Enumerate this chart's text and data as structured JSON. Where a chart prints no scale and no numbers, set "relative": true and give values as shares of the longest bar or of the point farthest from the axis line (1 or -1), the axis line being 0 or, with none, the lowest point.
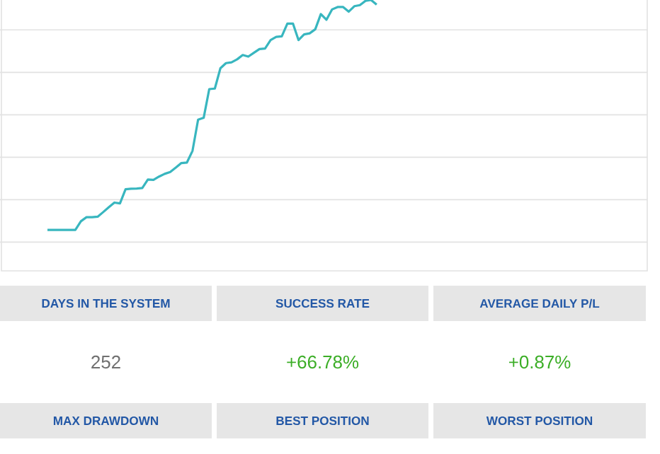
{
  "chart_data": [
    {
      "type": "line",
      "relative": true,
      "grid": "y",
      "color": "#38b6bf",
      "marker": "none",
      "line_style": "solid",
      "categories": [
        null,
        null,
        null,
        null,
        null,
        null,
        null,
        null,
        null,
        null,
        null,
        null,
        null,
        null,
        null,
        null,
        null,
        null,
        null,
        null,
        null,
        null,
        null,
        null,
        null,
        null,
        null,
        null,
        null,
        null,
        null,
        null,
        null,
        null,
        null,
        null,
        null,
        null,
        null,
        null,
        null,
        null,
        null,
        null,
        null,
        null,
        null,
        null,
        null,
        null,
        null,
        null,
        null,
        null,
        null,
        null,
        null,
        null,
        null,
        null,
        null,
        null,
        null,
        null,
        null,
        null,
        null,
        null,
        null,
        null,
        null,
        null,
        null,
        null,
        null,
        null,
        null,
        null,
        null,
        null,
        null,
        null,
        null,
        null,
        null,
        null,
        null,
        null,
        null,
        null,
        null,
        null,
        null,
        null,
        null,
        null,
        null,
        null,
        null,
        null,
        null,
        null,
        null,
        null,
        null,
        null,
        null,
        null,
        null,
        null,
        null,
        null,
        null,
        null,
        null,
        null
      ],
      "values": [
        null,
        null,
        null,
        null,
        null,
        null,
        null,
        null,
        0.151,
        0.151,
        0.151,
        0.151,
        0.151,
        0.151,
        0.183,
        0.198,
        0.198,
        0.2,
        0.217,
        0.235,
        0.252,
        0.249,
        0.301,
        0.303,
        0.304,
        0.306,
        0.337,
        0.336,
        0.348,
        0.358,
        0.365,
        0.381,
        0.398,
        0.4,
        0.443,
        0.558,
        0.565,
        0.671,
        0.673,
        0.748,
        0.767,
        0.77,
        0.781,
        0.797,
        0.791,
        0.805,
        0.819,
        0.821,
        0.852,
        0.864,
        0.866,
        0.913,
        0.913,
        0.852,
        0.873,
        0.877,
        0.892,
        0.948,
        0.927,
        0.965,
        0.974,
        0.974,
        0.957,
        0.977,
        0.981,
        0.997,
        1,
        0.983,
        null,
        null,
        null,
        null,
        null,
        null,
        null,
        null,
        null,
        null,
        null,
        null,
        null,
        null,
        null,
        null,
        null,
        null,
        null,
        null,
        null,
        null,
        null,
        null,
        null,
        null,
        null,
        null,
        null,
        null,
        null,
        null,
        null,
        null,
        null,
        null,
        null,
        null,
        null,
        null,
        null,
        null,
        null,
        null,
        null,
        null,
        null,
        null
      ]
    },
    {
      "type": "other",
      "categories": [
        "DAYS IN THE SYSTEM",
        "SUCCESS RATE",
        "AVERAGE DAILY P/L",
        "MAX DRAWDOWN",
        "BEST POSITION",
        "WORST POSITION"
      ],
      "values": [
        252,
        66.78,
        0.87,
        null,
        null,
        null
      ],
      "value_labels": [
        "252",
        "+66.78%",
        "+0.87%",
        null,
        null,
        null
      ],
      "colors": [
        "#e6e6e6",
        "#e6e6e6",
        "#e6e6e6",
        "#e6e6e6",
        "#e6e6e6",
        "#e6e6e6"
      ]
    }
  ]
}
